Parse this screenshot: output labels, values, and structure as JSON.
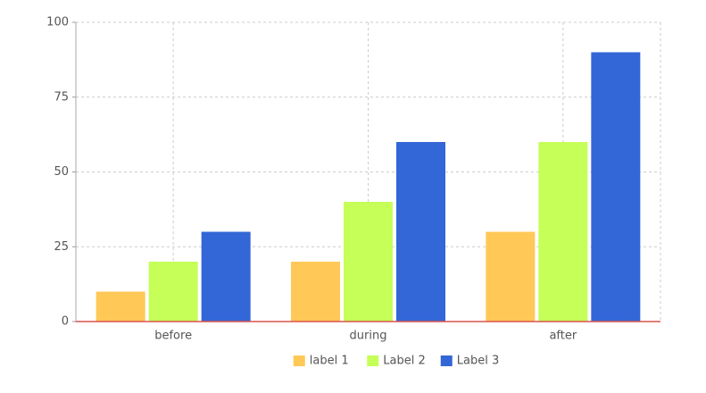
{
  "chart_data": {
    "type": "bar",
    "categories": [
      "before",
      "during",
      "after"
    ],
    "series": [
      {
        "name": "label 1",
        "color": "#ffc857",
        "values": [
          10,
          20,
          30
        ]
      },
      {
        "name": "Label 2",
        "color": "#c5ff57",
        "values": [
          20,
          40,
          60
        ]
      },
      {
        "name": "Label 3",
        "color": "#3366d6",
        "values": [
          30,
          60,
          90
        ]
      }
    ],
    "ylim": [
      0,
      100
    ],
    "yticks": [
      0,
      25,
      50,
      75,
      100
    ],
    "grid": true,
    "legend": "bottom"
  }
}
